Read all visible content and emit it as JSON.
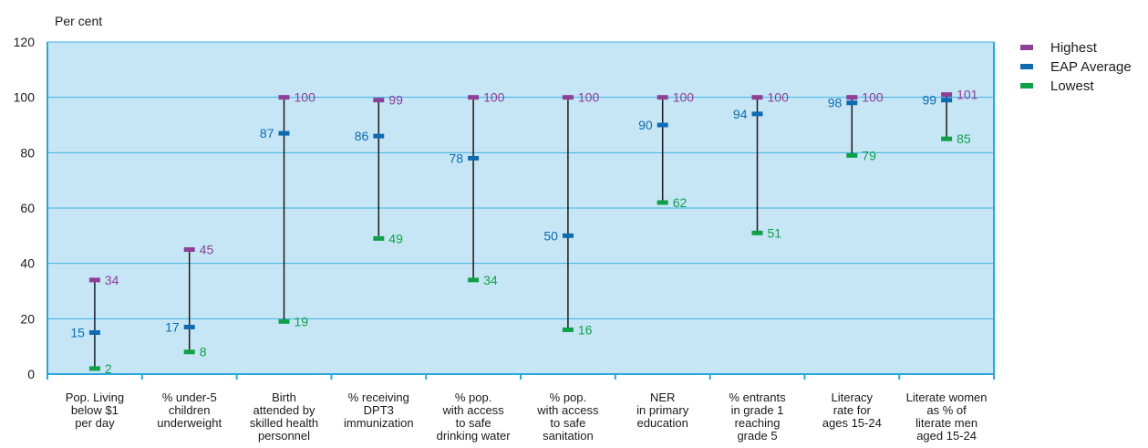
{
  "chart_data": {
    "type": "range",
    "ylabel": "Per cent",
    "ylim": [
      0,
      120
    ],
    "yticks": [
      0,
      20,
      40,
      60,
      80,
      100,
      120
    ],
    "grid": true,
    "legend_position": "top-right",
    "categories": [
      [
        "Pop. Living",
        "below $1",
        "per day"
      ],
      [
        "% under-5",
        "children",
        "underweight"
      ],
      [
        "Birth",
        "attended by",
        "skilled health",
        "personnel"
      ],
      [
        "% receiving",
        "DPT3",
        "immunization"
      ],
      [
        "% pop.",
        "with access",
        "to safe",
        "drinking water"
      ],
      [
        "% pop.",
        "with access",
        "to safe",
        "sanitation"
      ],
      [
        "NER",
        "in primary",
        "education"
      ],
      [
        "% entrants",
        "in grade 1",
        "reaching",
        "grade 5"
      ],
      [
        "Literacy",
        "rate for",
        "ages 15-24"
      ],
      [
        "Literate women",
        "as % of",
        "literate men",
        "aged 15-24"
      ]
    ],
    "series": [
      {
        "name": "Highest",
        "color": "#8e3f96",
        "values": [
          34,
          45,
          100,
          99,
          100,
          100,
          100,
          100,
          100,
          101
        ]
      },
      {
        "name": "EAP Average",
        "color": "#0e6bb0",
        "values": [
          15,
          17,
          87,
          86,
          78,
          50,
          90,
          94,
          98,
          99
        ]
      },
      {
        "name": "Lowest",
        "color": "#11a04a",
        "values": [
          2,
          8,
          19,
          49,
          34,
          16,
          62,
          51,
          79,
          85
        ]
      }
    ],
    "colors": {
      "plot_background": "#c6e6f6",
      "gridline": "#3fb1e3",
      "axis": "#2aa8dd",
      "range_line": "#1a1a1a"
    }
  }
}
